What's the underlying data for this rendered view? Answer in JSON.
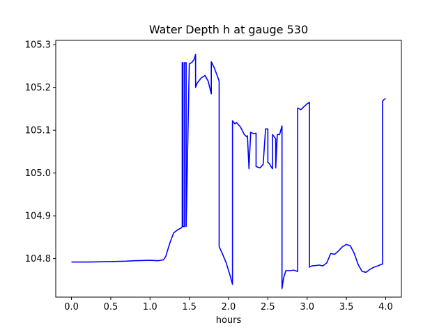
{
  "chart_data": {
    "type": "line",
    "title": "Water Depth h at gauge 530",
    "xlabel": "hours",
    "ylabel": "",
    "xlim": [
      -0.2,
      4.2
    ],
    "ylim": [
      104.71,
      105.31
    ],
    "xticks": [
      0.0,
      0.5,
      1.0,
      1.5,
      2.0,
      2.5,
      3.0,
      3.5,
      4.0
    ],
    "xtick_labels": [
      "0.0",
      "0.5",
      "1.0",
      "1.5",
      "2.0",
      "2.5",
      "3.0",
      "3.5",
      "4.0"
    ],
    "yticks": [
      104.8,
      104.9,
      105.0,
      105.1,
      105.2,
      105.3
    ],
    "ytick_labels": [
      "104.8",
      "104.9",
      "105.0",
      "105.1",
      "105.2",
      "105.3"
    ],
    "grid": false,
    "series": [
      {
        "color": "#0000ff",
        "x": [
          0.0,
          0.2,
          0.5,
          0.7,
          0.8,
          1.0,
          1.1,
          1.17,
          1.2,
          1.25,
          1.3,
          1.35,
          1.4,
          1.41,
          1.41,
          1.42,
          1.42,
          1.44,
          1.44,
          1.45,
          1.46,
          1.46,
          1.5,
          1.53,
          1.56,
          1.58,
          1.58,
          1.6,
          1.65,
          1.7,
          1.74,
          1.78,
          1.78,
          1.82,
          1.86,
          1.88,
          1.88,
          1.92,
          1.97,
          2.02,
          2.05,
          2.05,
          2.08,
          2.1,
          2.15,
          2.2,
          2.23,
          2.24,
          2.26,
          2.26,
          2.28,
          2.28,
          2.32,
          2.35,
          2.35,
          2.4,
          2.44,
          2.47,
          2.47,
          2.5,
          2.5,
          2.52,
          2.54,
          2.56,
          2.56,
          2.6,
          2.6,
          2.62,
          2.62,
          2.65,
          2.68,
          2.68,
          2.7,
          2.73,
          2.78,
          2.83,
          2.88,
          2.88,
          2.92,
          2.96,
          3.0,
          3.03,
          3.03,
          3.06,
          3.12,
          3.15,
          3.2,
          3.25,
          3.3,
          3.35,
          3.4,
          3.45,
          3.5,
          3.55,
          3.6,
          3.65,
          3.7,
          3.75,
          3.8,
          3.85,
          3.9,
          3.95,
          3.96,
          3.96,
          3.98,
          4.0
        ],
        "y": [
          104.792,
          104.792,
          104.793,
          104.794,
          104.795,
          104.796,
          104.795,
          104.797,
          104.805,
          104.835,
          104.86,
          104.867,
          104.872,
          104.875,
          105.258,
          105.258,
          104.875,
          104.875,
          105.258,
          105.257,
          105.258,
          104.875,
          105.255,
          105.258,
          105.265,
          105.277,
          105.2,
          105.21,
          105.222,
          105.228,
          105.215,
          105.185,
          105.26,
          105.245,
          105.225,
          105.215,
          104.828,
          104.812,
          104.79,
          104.76,
          104.74,
          105.122,
          105.115,
          105.118,
          105.108,
          105.09,
          105.085,
          105.087,
          105.01,
          105.015,
          105.088,
          105.095,
          105.092,
          105.093,
          105.015,
          105.012,
          105.02,
          105.1,
          105.103,
          105.103,
          105.025,
          105.022,
          105.015,
          105.01,
          105.09,
          105.08,
          105.012,
          105.088,
          105.09,
          105.09,
          105.11,
          104.73,
          104.755,
          104.772,
          104.772,
          104.773,
          104.77,
          105.152,
          105.148,
          105.155,
          105.162,
          105.165,
          104.78,
          104.783,
          104.784,
          104.785,
          104.783,
          104.79,
          104.812,
          104.81,
          104.818,
          104.828,
          104.833,
          104.83,
          104.812,
          104.786,
          104.77,
          104.768,
          104.775,
          104.78,
          104.783,
          104.787,
          104.787,
          105.168,
          105.172,
          105.174
        ]
      }
    ]
  }
}
